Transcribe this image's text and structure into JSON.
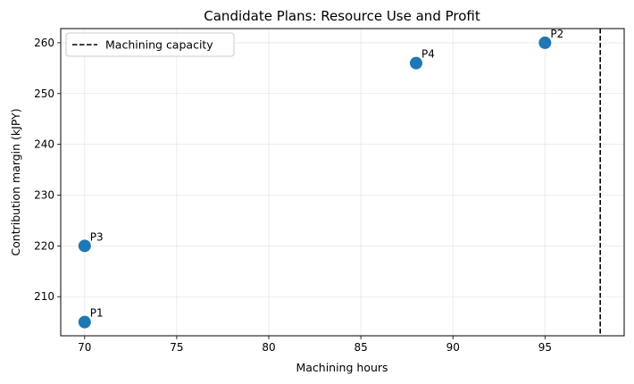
{
  "chart_data": {
    "type": "scatter",
    "title": "Candidate Plans: Resource Use and Profit",
    "xlabel": "Machining hours",
    "ylabel": "Contribution margin (kJPY)",
    "xlim": [
      68.7,
      99.3
    ],
    "ylim": [
      202.3,
      262.8
    ],
    "xticks": [
      70,
      75,
      80,
      85,
      90,
      95
    ],
    "yticks": [
      210,
      220,
      230,
      240,
      250,
      260
    ],
    "grid": true,
    "points": [
      {
        "label": "P1",
        "x": 70,
        "y": 205
      },
      {
        "label": "P2",
        "x": 95,
        "y": 260
      },
      {
        "label": "P3",
        "x": 70,
        "y": 220
      },
      {
        "label": "P4",
        "x": 88,
        "y": 256
      }
    ],
    "point_color": "#1f77b4",
    "reference_line": {
      "orientation": "vertical",
      "x": 98,
      "style": "dashed",
      "color": "#000000",
      "name": "Machining capacity"
    },
    "legend": {
      "position": "top-left",
      "entries": [
        "Machining capacity"
      ]
    }
  }
}
